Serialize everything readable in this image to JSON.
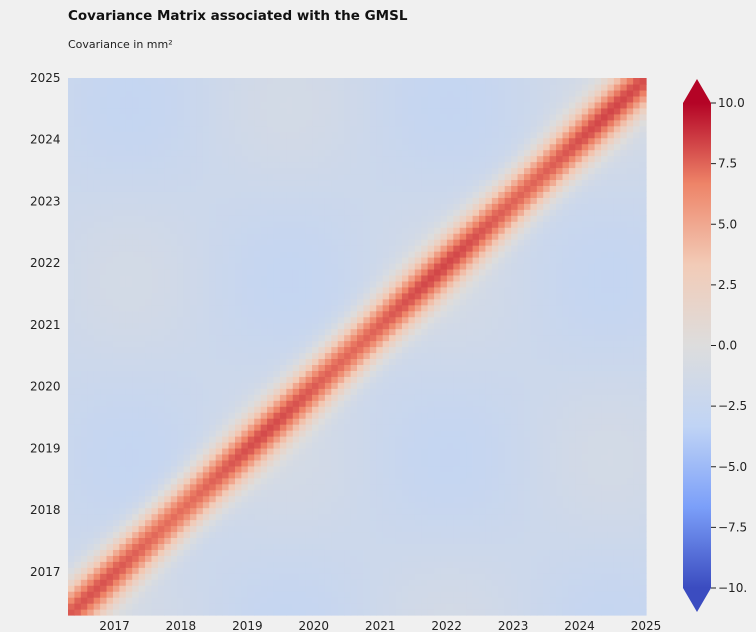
{
  "header": {
    "title": "Covariance Matrix associated with the GMSL",
    "subtitle": "Covariance in mm²"
  },
  "chart_data": {
    "type": "heatmap",
    "title": "Covariance Matrix associated with the GMSL",
    "subtitle": "Covariance in mm²",
    "x_ticks": [
      "2017",
      "2018",
      "2019",
      "2020",
      "2021",
      "2022",
      "2023",
      "2024",
      "2025"
    ],
    "y_ticks": [
      "2017",
      "2018",
      "2019",
      "2020",
      "2021",
      "2022",
      "2023",
      "2024",
      "2025"
    ],
    "xlim": [
      2016.3,
      2025.0
    ],
    "ylim": [
      2016.3,
      2025.0
    ],
    "colorbar": {
      "min": -10.0,
      "max": 10.0,
      "ticks": [
        "10.0",
        "7.5",
        "5.0",
        "2.5",
        "0.0",
        "−2.5",
        "−5.0",
        "−7.5",
        "−10."
      ],
      "extend": "both",
      "colormap": "coolwarm",
      "colors": [
        "#3b4cc0",
        "#7b9ff9",
        "#c0d4f5",
        "#dddddd",
        "#f2cbb7",
        "#ee8468",
        "#b40426"
      ]
    },
    "description_values": {
      "diagonal_value": 7.5,
      "off_diagonal_value": -2.0,
      "diagonal_width_years": 0.35
    }
  }
}
